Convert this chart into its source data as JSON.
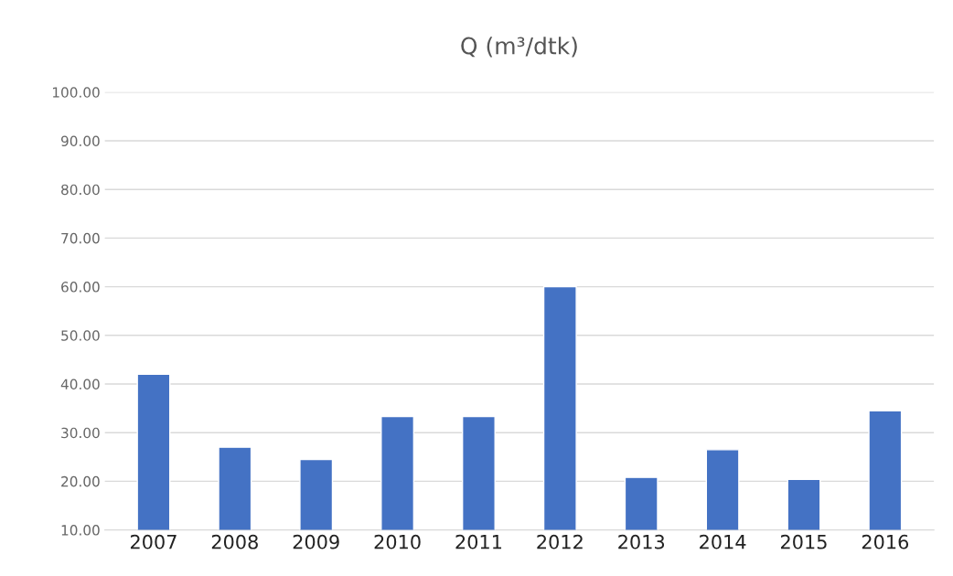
{
  "chart_data": {
    "type": "bar",
    "title": "Q (m³/dtk)",
    "categories": [
      "2007",
      "2008",
      "2009",
      "2010",
      "2011",
      "2012",
      "2013",
      "2014",
      "2015",
      "2016"
    ],
    "values": [
      42,
      27,
      24.5,
      33.3,
      33.3,
      60,
      20.8,
      26.5,
      20.4,
      34.5
    ],
    "color": "#4472c4",
    "ylim": [
      10,
      100
    ],
    "yticks": [
      {
        "value": 10,
        "label": "10.00"
      },
      {
        "value": 20,
        "label": "20.00"
      },
      {
        "value": 30,
        "label": "30.00"
      },
      {
        "value": 40,
        "label": "40.00"
      },
      {
        "value": 50,
        "label": "50.00"
      },
      {
        "value": 60,
        "label": "60.00"
      },
      {
        "value": 70,
        "label": "70.00"
      },
      {
        "value": 80,
        "label": "80.00"
      },
      {
        "value": 90,
        "label": "90.00"
      },
      {
        "value": 100,
        "label": "100.00"
      }
    ],
    "grid": "y"
  }
}
